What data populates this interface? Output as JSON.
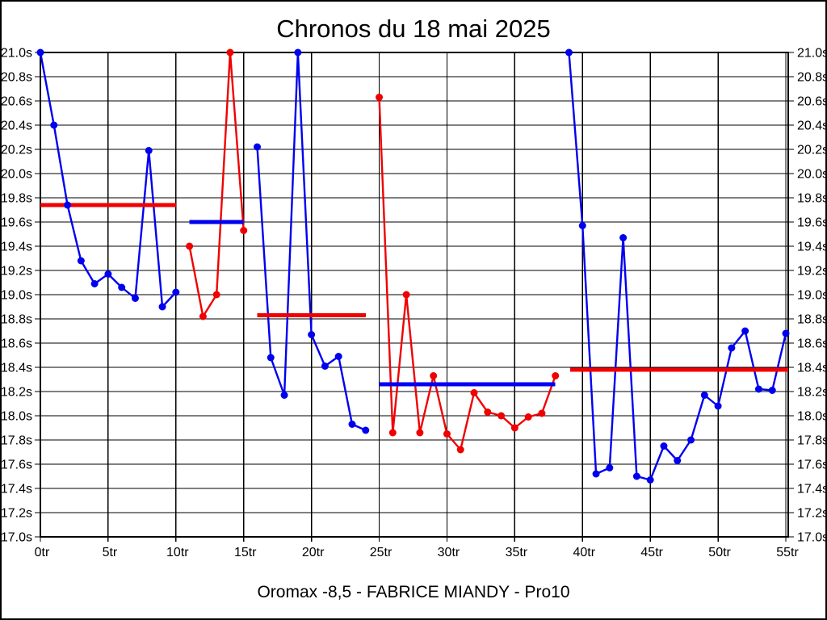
{
  "frame": {
    "background": "#FFFFFF",
    "border_color": "#000000"
  },
  "chart_data": {
    "type": "line",
    "title": "Chronos du 18 mai 2025",
    "caption": "Oromax -8,5 - FABRICE MIANDY - Pro10",
    "x_unit": "tr",
    "y_unit": "s",
    "xlim": [
      0,
      55.3
    ],
    "ylim": [
      17.0,
      21.0
    ],
    "x_tick_step": 5,
    "y_tick_step": 0.2,
    "grid": "both",
    "legend_position": "none",
    "colors": {
      "blue_series": "#0000F0",
      "red_series": "#F00000",
      "grid": "#000000",
      "text": "#000000"
    },
    "series": [
      {
        "name": "stint-1-blue",
        "color": "#0000F0",
        "x": [
          0,
          1,
          2,
          3,
          4,
          5,
          6,
          7,
          8,
          9,
          10
        ],
        "y": [
          21.0,
          20.4,
          19.74,
          19.28,
          19.09,
          19.17,
          19.06,
          18.97,
          20.19,
          18.9,
          19.02
        ]
      },
      {
        "name": "stint-2-red",
        "color": "#F00000",
        "x": [
          11,
          12,
          13,
          14,
          15
        ],
        "y": [
          19.4,
          18.82,
          19.0,
          21.0,
          19.53
        ]
      },
      {
        "name": "stint-3-blue",
        "color": "#0000F0",
        "x": [
          16,
          17,
          18,
          19,
          20,
          21,
          22,
          23,
          24
        ],
        "y": [
          20.22,
          18.48,
          18.17,
          21.0,
          18.67,
          18.41,
          18.49,
          17.93,
          17.88
        ]
      },
      {
        "name": "stint-4-red",
        "color": "#F00000",
        "x": [
          25,
          26,
          27,
          28,
          29,
          30,
          31,
          32,
          33,
          34,
          35,
          36,
          37,
          38
        ],
        "y": [
          20.63,
          17.86,
          19.0,
          17.86,
          18.33,
          17.85,
          17.72,
          18.19,
          18.03,
          18.0,
          17.9,
          17.99,
          18.02,
          18.33
        ]
      },
      {
        "name": "stint-5-blue",
        "color": "#0000F0",
        "x": [
          39,
          40,
          41,
          42,
          43,
          44,
          45,
          46,
          47,
          48,
          49,
          50,
          51,
          52,
          53,
          54,
          55
        ],
        "y": [
          21.0,
          19.57,
          17.52,
          17.57,
          19.47,
          17.5,
          17.47,
          17.75,
          17.63,
          17.8,
          18.17,
          18.08,
          18.56,
          18.7,
          18.22,
          18.21,
          18.68
        ]
      }
    ],
    "average_lines": [
      {
        "name": "avg-stint-1",
        "color": "#F00000",
        "x_start": 0,
        "x_end": 10,
        "y": 19.74
      },
      {
        "name": "avg-stint-2",
        "color": "#0000F0",
        "x_start": 11,
        "x_end": 15,
        "y": 19.6
      },
      {
        "name": "avg-stint-3",
        "color": "#F00000",
        "x_start": 16,
        "x_end": 24,
        "y": 18.83
      },
      {
        "name": "avg-stint-4",
        "color": "#0000F0",
        "x_start": 25,
        "x_end": 38,
        "y": 18.26
      },
      {
        "name": "avg-stint-5",
        "color": "#F00000",
        "x_start": 39.1,
        "x_end": 55.3,
        "y": 18.38
      }
    ]
  }
}
